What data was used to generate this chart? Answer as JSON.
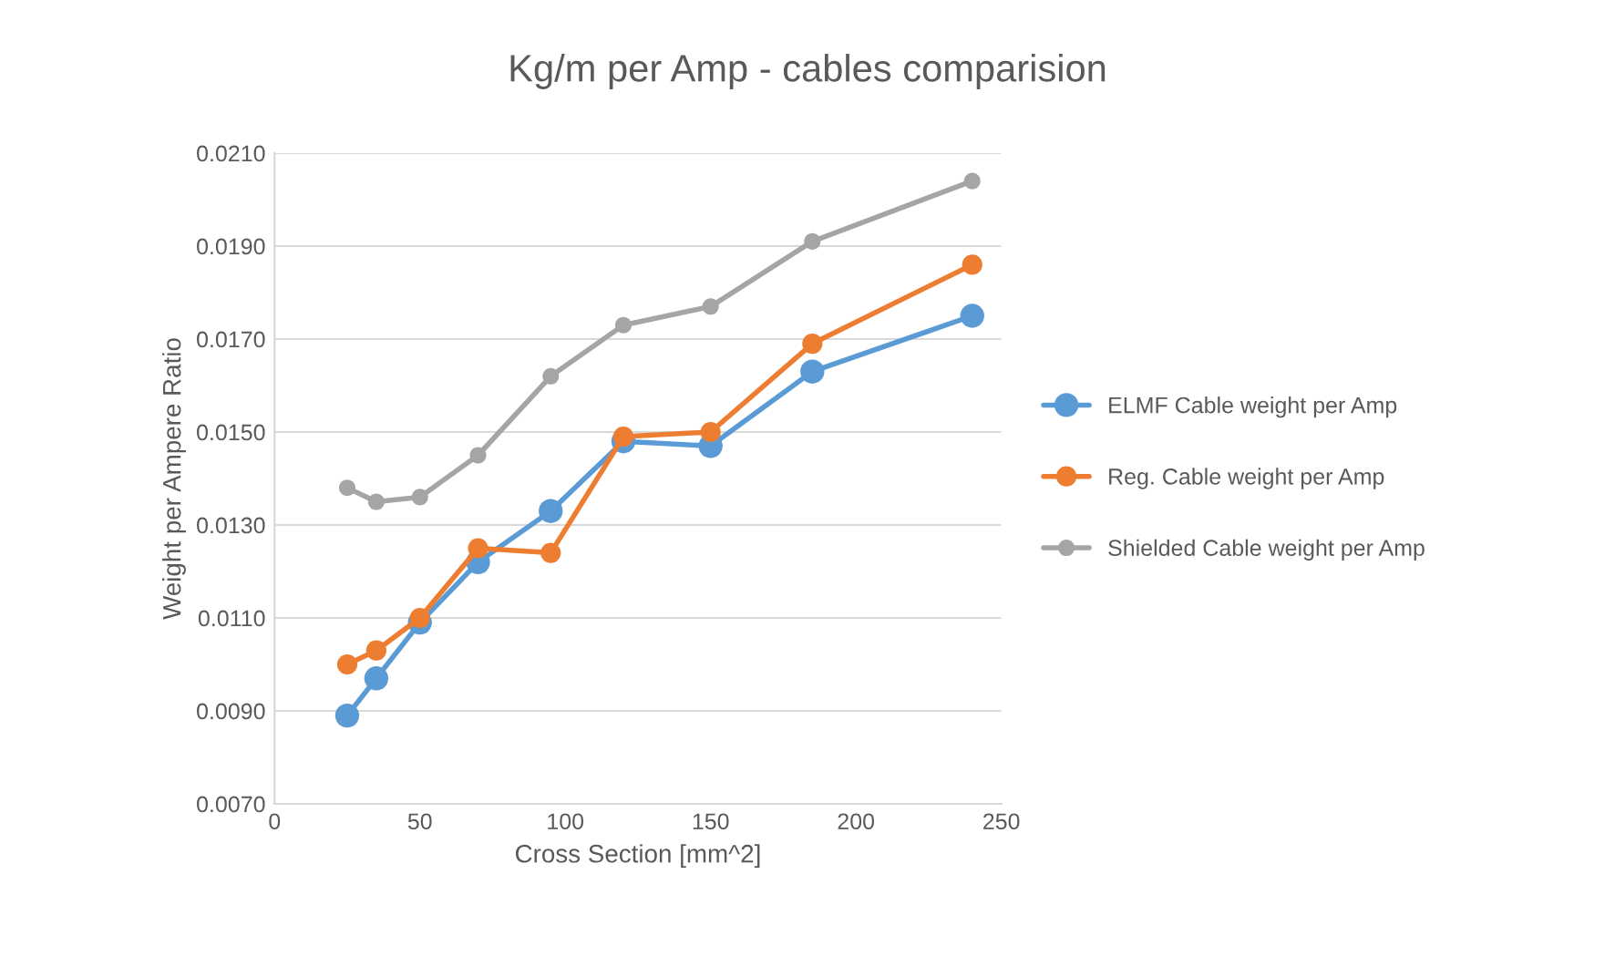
{
  "chart_data": {
    "type": "line",
    "title": "Kg/m per Amp - cables comparision",
    "xlabel": "Cross Section [mm^2]",
    "ylabel": "Weight per Ampere Ratio",
    "x": [
      25,
      35,
      50,
      70,
      95,
      120,
      150,
      185,
      240
    ],
    "series": [
      {
        "name": "ELMF Cable weight per Amp",
        "color": "#5b9bd5",
        "values": [
          0.0089,
          0.0097,
          0.0109,
          0.0122,
          0.0133,
          0.0148,
          0.0147,
          0.0163,
          0.0175
        ]
      },
      {
        "name": "Reg. Cable weight per Amp",
        "color": "#ed7d31",
        "values": [
          0.01,
          0.0103,
          0.011,
          0.0125,
          0.0124,
          0.0149,
          0.015,
          0.0169,
          0.0186
        ]
      },
      {
        "name": "Shielded Cable weight per Amp",
        "color": "#a5a5a5",
        "values": [
          0.0138,
          0.0135,
          0.0136,
          0.0145,
          0.0162,
          0.0173,
          0.0177,
          0.0191,
          0.0204
        ]
      }
    ],
    "xlim": [
      0,
      250
    ],
    "xticks": [
      0,
      50,
      100,
      150,
      200,
      250
    ],
    "ylim": [
      0.007,
      0.021
    ],
    "yticks": [
      {
        "value": 0.007,
        "label": "0.0070"
      },
      {
        "value": 0.009,
        "label": "0.0090"
      },
      {
        "value": 0.011,
        "label": "0.0110"
      },
      {
        "value": 0.013,
        "label": "0.0130"
      },
      {
        "value": 0.015,
        "label": "0.0150"
      },
      {
        "value": 0.017,
        "label": "0.0170"
      },
      {
        "value": 0.019,
        "label": "0.0190"
      },
      {
        "value": 0.021,
        "label": "0.0210"
      }
    ],
    "grid": "y",
    "legend": "right",
    "marker": "circle",
    "line_style": "solid"
  }
}
